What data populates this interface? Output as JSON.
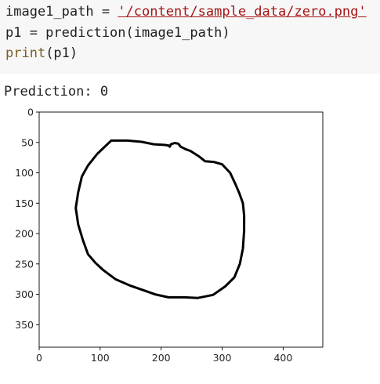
{
  "cell": {
    "lines": [
      {
        "prefix": "image1_path = ",
        "string": "'/content/sample_data/zero.png'"
      },
      {
        "text": "p1 = prediction(image1_path)"
      },
      {
        "builtin": "print",
        "rest": "(p1)"
      }
    ]
  },
  "output": {
    "text": "Prediction: 0"
  },
  "chart_data": {
    "type": "image",
    "title": "",
    "xlabel": "",
    "ylabel": "",
    "xlim": [
      0,
      465
    ],
    "ylim": [
      387,
      0
    ],
    "x_ticks": [
      0,
      100,
      200,
      300,
      400
    ],
    "y_ticks": [
      0,
      50,
      100,
      150,
      200,
      250,
      300,
      350
    ],
    "stroke_color": "#000000",
    "stroke_description": "hand-drawn zero",
    "stroke_points": [
      [
        118,
        47
      ],
      [
        145,
        47
      ],
      [
        168,
        49
      ],
      [
        188,
        53
      ],
      [
        205,
        54
      ],
      [
        212,
        55
      ],
      [
        214,
        57
      ],
      [
        216,
        53
      ],
      [
        222,
        51
      ],
      [
        228,
        52
      ],
      [
        232,
        57
      ],
      [
        240,
        61
      ],
      [
        248,
        64
      ],
      [
        262,
        73
      ],
      [
        272,
        81
      ],
      [
        286,
        82
      ],
      [
        300,
        86
      ],
      [
        313,
        100
      ],
      [
        321,
        117
      ],
      [
        328,
        133
      ],
      [
        334,
        150
      ],
      [
        336,
        170
      ],
      [
        336,
        195
      ],
      [
        334,
        225
      ],
      [
        329,
        250
      ],
      [
        320,
        272
      ],
      [
        305,
        287
      ],
      [
        285,
        301
      ],
      [
        260,
        306
      ],
      [
        238,
        305
      ],
      [
        212,
        305
      ],
      [
        190,
        300
      ],
      [
        170,
        293
      ],
      [
        150,
        286
      ],
      [
        125,
        275
      ],
      [
        105,
        260
      ],
      [
        92,
        248
      ],
      [
        80,
        234
      ],
      [
        72,
        212
      ],
      [
        64,
        185
      ],
      [
        60,
        158
      ],
      [
        64,
        132
      ],
      [
        70,
        106
      ],
      [
        80,
        88
      ],
      [
        95,
        69
      ],
      [
        118,
        47
      ]
    ]
  }
}
